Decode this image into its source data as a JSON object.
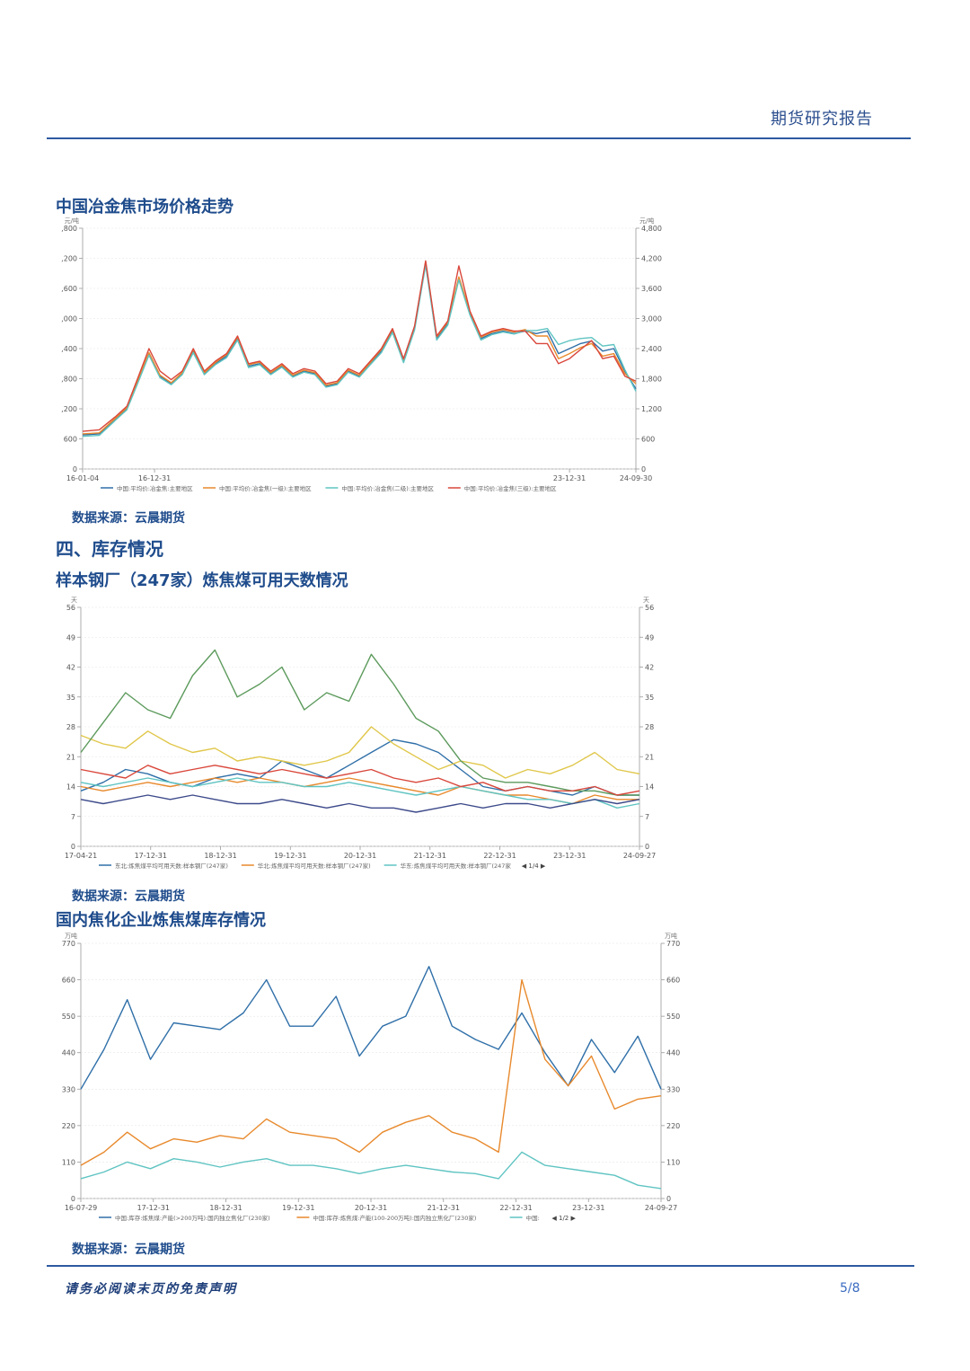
{
  "header": {
    "title": "期货研究报告"
  },
  "sections": {
    "chart1_title": "中国冶金焦市场价格走势",
    "chart1_source": "数据来源：云晨期货",
    "section4_title": "四、库存情况",
    "chart2_title": "样本钢厂（247家）炼焦煤可用天数情况",
    "chart2_source": "数据来源：云晨期货",
    "chart3_title": "国内焦化企业炼焦煤库存情况",
    "chart3_source": "数据来源：云晨期货"
  },
  "footer": {
    "disclaimer": "请务必阅读末页的免责声明",
    "page": "5/8"
  },
  "chart_data": [
    {
      "type": "line",
      "unit_left": "元/吨",
      "unit_right": "元/吨",
      "ylim": [
        0,
        4800
      ],
      "yticks": [
        "0",
        "600",
        "1,200",
        "1,800",
        "2,400",
        "3,000",
        "3,600",
        "4,200",
        "4,800"
      ],
      "xticks": [
        "16-01-04",
        "16-12-31",
        "23-12-31",
        "24-09-30"
      ],
      "legend": [
        "中国:平均价:冶金焦:主要地区",
        "中国:平均价:冶金焦(一级):主要地区",
        "中国:平均价:冶金焦(二级):主要地区",
        "中国:平均价:冶金焦(三级):主要地区"
      ],
      "colors": [
        "#2f6fa8",
        "#e8892c",
        "#5fc4c2",
        "#d9473b"
      ],
      "x": [
        0,
        0.03,
        0.06,
        0.08,
        0.1,
        0.12,
        0.14,
        0.16,
        0.18,
        0.2,
        0.22,
        0.24,
        0.26,
        0.28,
        0.3,
        0.32,
        0.34,
        0.36,
        0.38,
        0.4,
        0.42,
        0.44,
        0.46,
        0.48,
        0.5,
        0.52,
        0.54,
        0.56,
        0.58,
        0.6,
        0.62,
        0.64,
        0.66,
        0.68,
        0.7,
        0.72,
        0.74,
        0.76,
        0.78,
        0.8,
        0.82,
        0.84,
        0.86,
        0.88,
        0.9,
        0.92,
        0.94,
        0.96,
        0.98,
        1.0
      ],
      "series": [
        {
          "values": [
            680,
            700,
            1000,
            1200,
            1750,
            2300,
            1850,
            1700,
            1900,
            2350,
            1900,
            2100,
            2250,
            2600,
            2050,
            2100,
            1900,
            2050,
            1850,
            1950,
            1900,
            1650,
            1700,
            1950,
            1850,
            2100,
            2350,
            2750,
            2150,
            2800,
            4100,
            2600,
            2900,
            3800,
            3100,
            2600,
            2700,
            2750,
            2700,
            2750,
            2700,
            2750,
            2300,
            2400,
            2500,
            2550,
            2350,
            2400,
            1950,
            1600
          ]
        },
        {
          "values": [
            700,
            720,
            1020,
            1220,
            1780,
            2320,
            1870,
            1720,
            1920,
            2380,
            1920,
            2120,
            2280,
            2630,
            2080,
            2130,
            1920,
            2070,
            1870,
            1970,
            1920,
            1670,
            1720,
            1970,
            1870,
            2120,
            2380,
            2780,
            2180,
            2830,
            4130,
            2630,
            2930,
            3830,
            3130,
            2630,
            2730,
            2780,
            2730,
            2780,
            2650,
            2650,
            2200,
            2300,
            2420,
            2500,
            2250,
            2300,
            1900,
            1700
          ]
        },
        {
          "values": [
            650,
            670,
            980,
            1180,
            1720,
            2270,
            1820,
            1680,
            1880,
            2320,
            1880,
            2080,
            2220,
            2570,
            2020,
            2080,
            1880,
            2030,
            1830,
            1930,
            1880,
            1630,
            1680,
            1930,
            1830,
            2080,
            2320,
            2720,
            2120,
            2770,
            4060,
            2570,
            2870,
            3770,
            3070,
            2570,
            2680,
            2730,
            2690,
            2760,
            2760,
            2800,
            2480,
            2560,
            2600,
            2620,
            2450,
            2480,
            1980,
            1550
          ]
        },
        {
          "values": [
            750,
            780,
            1050,
            1250,
            1820,
            2400,
            1950,
            1780,
            1950,
            2400,
            1950,
            2150,
            2300,
            2650,
            2100,
            2150,
            1950,
            2100,
            1900,
            2000,
            1950,
            1700,
            1750,
            2000,
            1900,
            2150,
            2400,
            2800,
            2200,
            2850,
            4150,
            2650,
            2950,
            4050,
            3150,
            2650,
            2750,
            2800,
            2750,
            2750,
            2500,
            2500,
            2100,
            2200,
            2380,
            2560,
            2200,
            2250,
            1850,
            1750
          ]
        }
      ]
    },
    {
      "type": "line",
      "unit_left": "天",
      "unit_right": "天",
      "ylim": [
        0,
        56
      ],
      "yticks": [
        "0",
        "7",
        "14",
        "21",
        "28",
        "35",
        "42",
        "49",
        "56"
      ],
      "xticks": [
        "17-04-21",
        "17-12-31",
        "18-12-31",
        "19-12-31",
        "20-12-31",
        "21-12-31",
        "22-12-31",
        "23-12-31",
        "24-09-27"
      ],
      "legend": [
        "东北:炼焦煤平均可用天数:样本钢厂(247家)",
        "华北:炼焦煤平均可用天数:样本钢厂(247家)",
        "华东:炼焦煤平均可用天数:样本钢厂(247家"
      ],
      "legend_page": "1/4",
      "colors": [
        "#2f6fa8",
        "#e8892c",
        "#5fc4c2",
        "#e0c74a",
        "#5c9a5c",
        "#d9473b",
        "#3d4a8a"
      ],
      "x": [
        0,
        0.04,
        0.08,
        0.12,
        0.16,
        0.2,
        0.24,
        0.28,
        0.32,
        0.36,
        0.4,
        0.44,
        0.48,
        0.52,
        0.56,
        0.6,
        0.64,
        0.68,
        0.72,
        0.76,
        0.8,
        0.84,
        0.88,
        0.92,
        0.96,
        1.0
      ],
      "series": [
        {
          "values": [
            13,
            15,
            18,
            17,
            15,
            14,
            16,
            17,
            16,
            20,
            18,
            16,
            19,
            22,
            25,
            24,
            22,
            18,
            14,
            13,
            14,
            13,
            12,
            14,
            12,
            12
          ]
        },
        {
          "values": [
            14,
            13,
            14,
            15,
            14,
            15,
            16,
            15,
            16,
            15,
            14,
            15,
            16,
            15,
            14,
            13,
            12,
            14,
            13,
            12,
            12,
            11,
            10,
            12,
            11,
            11
          ]
        },
        {
          "values": [
            15,
            14,
            15,
            16,
            15,
            14,
            15,
            16,
            15,
            15,
            14,
            14,
            15,
            14,
            13,
            12,
            13,
            14,
            13,
            12,
            11,
            11,
            10,
            11,
            9,
            10
          ]
        },
        {
          "values": [
            26,
            24,
            23,
            27,
            24,
            22,
            23,
            20,
            21,
            20,
            19,
            20,
            22,
            28,
            24,
            21,
            18,
            20,
            19,
            16,
            18,
            17,
            19,
            22,
            18,
            17
          ]
        },
        {
          "values": [
            22,
            29,
            36,
            32,
            30,
            40,
            46,
            35,
            38,
            42,
            32,
            36,
            34,
            45,
            38,
            30,
            27,
            20,
            16,
            15,
            15,
            14,
            13,
            13,
            12,
            12
          ]
        },
        {
          "values": [
            18,
            17,
            16,
            19,
            17,
            18,
            19,
            18,
            17,
            18,
            17,
            16,
            17,
            18,
            16,
            15,
            16,
            14,
            15,
            13,
            14,
            13,
            13,
            14,
            12,
            13
          ]
        },
        {
          "values": [
            11,
            10,
            11,
            12,
            11,
            12,
            11,
            10,
            10,
            11,
            10,
            9,
            10,
            9,
            9,
            8,
            9,
            10,
            9,
            10,
            10,
            9,
            10,
            11,
            10,
            11
          ]
        }
      ]
    },
    {
      "type": "line",
      "unit_left": "万吨",
      "unit_right": "万吨",
      "ylim": [
        0,
        770
      ],
      "yticks": [
        "0",
        "110",
        "220",
        "330",
        "440",
        "550",
        "660",
        "770"
      ],
      "xticks": [
        "16-07-29",
        "17-12-31",
        "18-12-31",
        "19-12-31",
        "20-12-31",
        "21-12-31",
        "22-12-31",
        "23-12-31",
        "24-09-27"
      ],
      "legend": [
        "中国:库存:炼焦煤:产能(>200万吨):国内独立焦化厂(230家)",
        "中国:库存:炼焦煤:产能(100-200万吨):国内独立焦化厂(230家)",
        "中国:"
      ],
      "legend_page": "1/2",
      "colors": [
        "#2f6fa8",
        "#e8892c",
        "#5fc4c2"
      ],
      "x": [
        0,
        0.04,
        0.08,
        0.12,
        0.16,
        0.2,
        0.24,
        0.28,
        0.32,
        0.36,
        0.4,
        0.44,
        0.48,
        0.52,
        0.56,
        0.6,
        0.64,
        0.68,
        0.72,
        0.76,
        0.8,
        0.84,
        0.88,
        0.92,
        0.96,
        1.0
      ],
      "series": [
        {
          "values": [
            330,
            450,
            600,
            420,
            530,
            520,
            510,
            560,
            660,
            520,
            520,
            610,
            430,
            520,
            550,
            700,
            520,
            480,
            450,
            560,
            440,
            340,
            480,
            380,
            490,
            330
          ]
        },
        {
          "values": [
            100,
            140,
            200,
            150,
            180,
            170,
            190,
            180,
            240,
            200,
            190,
            180,
            140,
            200,
            230,
            250,
            200,
            180,
            140,
            660,
            420,
            340,
            430,
            270,
            300,
            310
          ]
        },
        {
          "values": [
            60,
            80,
            110,
            90,
            120,
            110,
            95,
            110,
            120,
            100,
            100,
            90,
            75,
            90,
            100,
            90,
            80,
            75,
            60,
            140,
            100,
            90,
            80,
            70,
            40,
            30
          ]
        }
      ]
    }
  ]
}
